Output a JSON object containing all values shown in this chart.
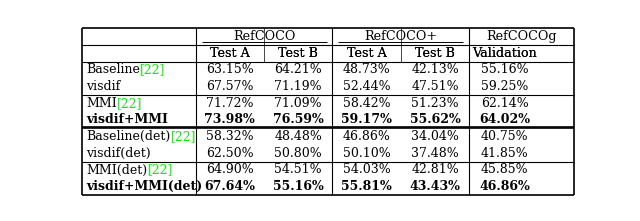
{
  "rows": [
    {
      "label": "Baseline",
      "citation": "[22]",
      "values": [
        "63.15%",
        "64.21%",
        "48.73%",
        "42.13%",
        "55.16%"
      ],
      "bold": false
    },
    {
      "label": "visdif",
      "citation": "",
      "values": [
        "67.57%",
        "71.19%",
        "52.44%",
        "47.51%",
        "59.25%"
      ],
      "bold": false
    },
    {
      "label": "MMI",
      "citation": "[22]",
      "values": [
        "71.72%",
        "71.09%",
        "58.42%",
        "51.23%",
        "62.14%"
      ],
      "bold": false
    },
    {
      "label": "visdif+MMI",
      "citation": "",
      "values": [
        "73.98%",
        "76.59%",
        "59.17%",
        "55.62%",
        "64.02%"
      ],
      "bold": true
    },
    {
      "label": "Baseline(det)",
      "citation": "[22]",
      "values": [
        "58.32%",
        "48.48%",
        "46.86%",
        "34.04%",
        "40.75%"
      ],
      "bold": false
    },
    {
      "label": "visdif(det)",
      "citation": "",
      "values": [
        "62.50%",
        "50.80%",
        "50.10%",
        "37.48%",
        "41.85%"
      ],
      "bold": false
    },
    {
      "label": "MMI(det)",
      "citation": "[22]",
      "values": [
        "64.90%",
        "54.51%",
        "54.03%",
        "42.81%",
        "45.85%"
      ],
      "bold": false
    },
    {
      "label": "visdif+MMI(det)",
      "citation": "",
      "values": [
        "67.64%",
        "55.16%",
        "55.81%",
        "43.43%",
        "46.86%"
      ],
      "bold": true
    }
  ],
  "col_group_labels": [
    "RefCOCO",
    "RefCOCO+",
    "RefCOCOg"
  ],
  "col_sub_labels": [
    "Test A",
    "Test B",
    "Test A",
    "Test B",
    "Validation"
  ],
  "green_color": "#00ee00",
  "black_color": "#000000",
  "bg_color": "#ffffff"
}
